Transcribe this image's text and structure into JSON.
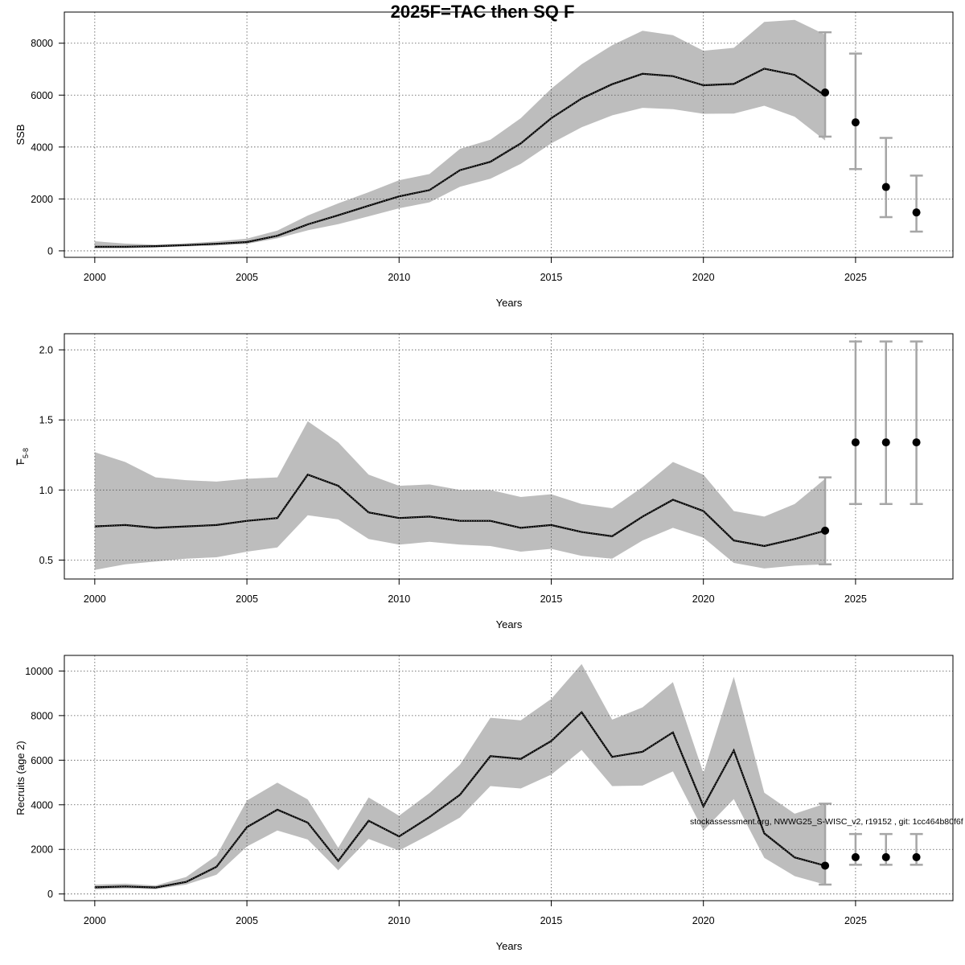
{
  "title": "2025F=TAC then SQ F",
  "footnote": "stockassessment.org, NWWG25_S-WISC_v2, r19152 , git: 1cc464b80f6f",
  "colors": {
    "band": "#bdbdbd",
    "line": "#000000",
    "grid": "#555555",
    "error_bar": "#a6a6a6"
  },
  "chart_data": [
    {
      "type": "line",
      "id": "ssb",
      "ylabel": "SSB",
      "ylabel_sub": "",
      "xlabel": "Years",
      "xlim": [
        1999.0,
        2028.2
      ],
      "ylim": [
        -250,
        9200
      ],
      "xticks": [
        2000,
        2005,
        2010,
        2015,
        2020,
        2025
      ],
      "yticks": [
        0,
        2000,
        4000,
        6000,
        8000
      ],
      "grid": true,
      "years": [
        2000,
        2001,
        2002,
        2003,
        2004,
        2005,
        2006,
        2007,
        2008,
        2009,
        2010,
        2011,
        2012,
        2013,
        2014,
        2015,
        2016,
        2017,
        2018,
        2019,
        2020,
        2021,
        2022,
        2023,
        2024
      ],
      "estimate": [
        160,
        160,
        180,
        220,
        270,
        340,
        580,
        1020,
        1370,
        1740,
        2100,
        2340,
        3110,
        3430,
        4140,
        5110,
        5870,
        6420,
        6820,
        6730,
        6380,
        6430,
        7020,
        6780,
        5980
      ],
      "lower": [
        90,
        100,
        130,
        170,
        210,
        270,
        480,
        790,
        1030,
        1330,
        1640,
        1870,
        2470,
        2780,
        3350,
        4140,
        4760,
        5220,
        5510,
        5460,
        5280,
        5290,
        5590,
        5170,
        4250
      ],
      "upper": [
        370,
        280,
        240,
        290,
        360,
        470,
        780,
        1360,
        1830,
        2260,
        2720,
        2960,
        3930,
        4280,
        5110,
        6250,
        7190,
        7920,
        8480,
        8310,
        7710,
        7820,
        8820,
        8900,
        8330
      ],
      "projection": {
        "years": [
          2024,
          2025,
          2026,
          2027
        ],
        "median": [
          6100,
          4950,
          2460,
          1480
        ],
        "lower": [
          4400,
          3150,
          1300,
          740
        ],
        "upper": [
          8420,
          7600,
          4350,
          2900
        ]
      }
    },
    {
      "type": "line",
      "id": "fbar",
      "ylabel": "F",
      "ylabel_sub": "5-8",
      "xlabel": "Years",
      "xlim": [
        1999.0,
        2028.2
      ],
      "ylim": [
        0.365,
        2.115
      ],
      "xticks": [
        2000,
        2005,
        2010,
        2015,
        2020,
        2025
      ],
      "yticks": [
        0.5,
        1.0,
        1.5,
        2.0
      ],
      "ytick_labels": [
        "0.5",
        "1.0",
        "1.5",
        "2.0"
      ],
      "grid": true,
      "years": [
        2000,
        2001,
        2002,
        2003,
        2004,
        2005,
        2006,
        2007,
        2008,
        2009,
        2010,
        2011,
        2012,
        2013,
        2014,
        2015,
        2016,
        2017,
        2018,
        2019,
        2020,
        2021,
        2022,
        2023,
        2024
      ],
      "estimate": [
        0.74,
        0.75,
        0.73,
        0.74,
        0.75,
        0.78,
        0.8,
        1.11,
        1.03,
        0.84,
        0.8,
        0.81,
        0.78,
        0.78,
        0.73,
        0.75,
        0.7,
        0.67,
        0.81,
        0.93,
        0.85,
        0.64,
        0.6,
        0.65,
        0.71
      ],
      "lower": [
        0.43,
        0.47,
        0.49,
        0.51,
        0.52,
        0.56,
        0.59,
        0.82,
        0.79,
        0.65,
        0.61,
        0.63,
        0.61,
        0.6,
        0.56,
        0.58,
        0.53,
        0.51,
        0.64,
        0.73,
        0.66,
        0.48,
        0.44,
        0.46,
        0.47
      ],
      "upper": [
        1.27,
        1.2,
        1.09,
        1.07,
        1.06,
        1.08,
        1.09,
        1.49,
        1.34,
        1.11,
        1.03,
        1.04,
        1.0,
        1.0,
        0.95,
        0.97,
        0.9,
        0.87,
        1.02,
        1.2,
        1.11,
        0.85,
        0.81,
        0.9,
        1.08
      ],
      "projection": {
        "years": [
          2024,
          2025,
          2026,
          2027
        ],
        "median": [
          0.71,
          1.34,
          1.34,
          1.34
        ],
        "lower": [
          0.47,
          0.9,
          0.9,
          0.9
        ],
        "upper": [
          1.09,
          2.06,
          2.06,
          2.06
        ]
      }
    },
    {
      "type": "line",
      "id": "recruits",
      "ylabel": "Recruits (age 2)",
      "ylabel_sub": "",
      "xlabel": "Years",
      "xlim": [
        1999.0,
        2028.2
      ],
      "ylim": [
        -300,
        10700
      ],
      "xticks": [
        2000,
        2005,
        2010,
        2015,
        2020,
        2025
      ],
      "yticks": [
        0,
        2000,
        4000,
        6000,
        8000,
        10000
      ],
      "grid": true,
      "years": [
        2000,
        2001,
        2002,
        2003,
        2004,
        2005,
        2006,
        2007,
        2008,
        2009,
        2010,
        2011,
        2012,
        2013,
        2014,
        2015,
        2016,
        2017,
        2018,
        2019,
        2020,
        2021,
        2022,
        2023,
        2024
      ],
      "estimate": [
        300,
        340,
        290,
        540,
        1220,
        3000,
        3780,
        3200,
        1480,
        3280,
        2580,
        3450,
        4450,
        6180,
        6060,
        6860,
        8150,
        6150,
        6380,
        7250,
        3930,
        6440,
        2720,
        1640,
        1270
      ],
      "lower": [
        210,
        250,
        220,
        420,
        860,
        2130,
        2850,
        2440,
        1060,
        2470,
        1950,
        2660,
        3430,
        4840,
        4730,
        5350,
        6460,
        4840,
        4860,
        5500,
        2840,
        4260,
        1620,
        800,
        420
      ],
      "upper": [
        420,
        460,
        380,
        760,
        1720,
        4190,
        4990,
        4240,
        2070,
        4330,
        3510,
        4530,
        5800,
        7900,
        7790,
        8750,
        10310,
        7820,
        8370,
        9500,
        5420,
        9740,
        4540,
        3600,
        4050
      ],
      "projection": {
        "years": [
          2024,
          2025,
          2026,
          2027
        ],
        "median": [
          1270,
          1650,
          1650,
          1650
        ],
        "lower": [
          420,
          1310,
          1310,
          1310
        ],
        "upper": [
          4050,
          2690,
          2690,
          2690
        ]
      }
    }
  ]
}
